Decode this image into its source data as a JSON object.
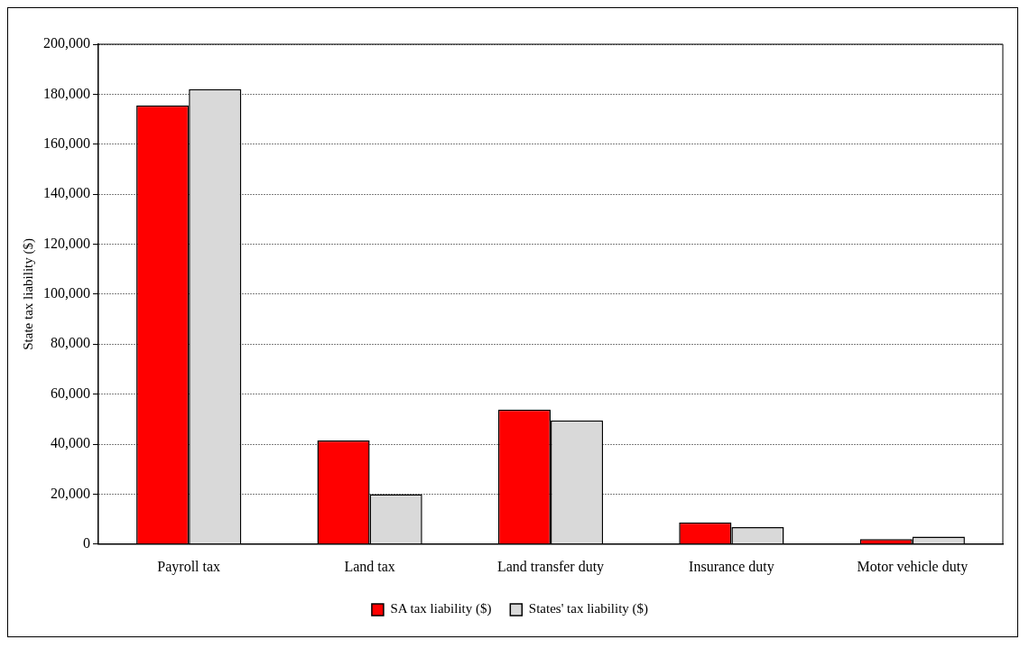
{
  "chart_data": {
    "type": "bar",
    "ylabel": "State tax liability ($)",
    "categories": [
      "Payroll tax",
      "Land tax",
      "Land transfer duty",
      "Insurance duty",
      "Motor vehicle duty"
    ],
    "series": [
      {
        "name": "SA tax liability ($)",
        "color": "#ff0000",
        "values": [
          175500,
          41500,
          53800,
          8700,
          2000
        ]
      },
      {
        "name": "States' tax liability ($)",
        "color": "#d9d9d9",
        "values": [
          182000,
          20000,
          49500,
          6800,
          3000
        ]
      }
    ],
    "ylim": [
      0,
      200000
    ],
    "yticks": [
      0,
      {
        "value": 20000,
        "label": "20,000"
      },
      {
        "value": 40000,
        "label": "40,000"
      },
      {
        "value": 60000,
        "label": "60,000"
      },
      {
        "value": 80000,
        "label": "80,000"
      },
      {
        "value": 100000,
        "label": "100,000"
      },
      {
        "value": 120000,
        "label": "120,000"
      },
      {
        "value": 140000,
        "label": "140,000"
      },
      {
        "value": 160000,
        "label": "160,000"
      },
      {
        "value": 180000,
        "label": "180,000"
      },
      {
        "value": 200000,
        "label": "200,000"
      }
    ],
    "grid": "y",
    "legend": "bottom"
  }
}
